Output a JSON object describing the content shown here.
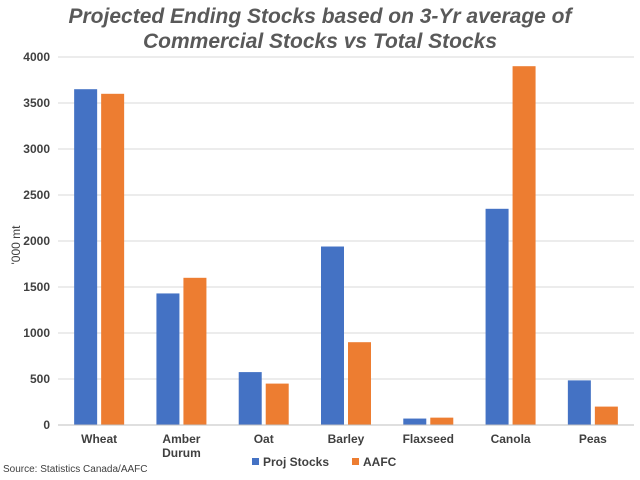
{
  "chart_data": {
    "type": "bar",
    "title_line1": "Projected Ending Stocks based on 3-Yr average of",
    "title_line2": "Commercial Stocks vs Total Stocks",
    "ylabel": "'000 mt",
    "categories": [
      [
        "Wheat"
      ],
      [
        "Amber",
        "Durum"
      ],
      [
        "Oat"
      ],
      [
        "Barley"
      ],
      [
        "Flaxseed"
      ],
      [
        "Canola"
      ],
      [
        "Peas"
      ]
    ],
    "series": [
      {
        "name": "Proj Stocks",
        "color": "#4472c4",
        "values": [
          3650,
          1430,
          575,
          1940,
          70,
          2350,
          485
        ]
      },
      {
        "name": "AAFC",
        "color": "#ed7d31",
        "values": [
          3600,
          1600,
          450,
          900,
          80,
          3900,
          200
        ]
      }
    ],
    "ylim": [
      0,
      4000
    ],
    "yticks": [
      0,
      500,
      1000,
      1500,
      2000,
      2500,
      3000,
      3500,
      4000
    ],
    "grid": true,
    "legend_position": "bottom"
  },
  "source": "Source: Statistics Canada/AAFC"
}
